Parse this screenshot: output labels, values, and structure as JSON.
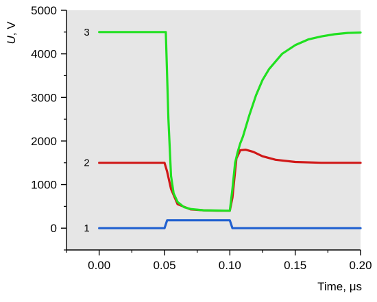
{
  "chart_data": {
    "type": "line",
    "xlabel": "Time, μs",
    "ylabel_italic": "U",
    "ylabel_rest": ", V",
    "xlim": [
      -0.025,
      0.2
    ],
    "ylim": [
      -500,
      5000
    ],
    "x_ticks": [
      0.0,
      0.05,
      0.1,
      0.15,
      0.2
    ],
    "x_tick_labels": [
      "0.00",
      "0.05",
      "0.10",
      "0.15",
      "0.20"
    ],
    "y_ticks": [
      0,
      1000,
      2000,
      3000,
      4000,
      5000
    ],
    "y_tick_labels": [
      "0",
      "1000",
      "2000",
      "3000",
      "4000",
      "5000"
    ],
    "background": "#e6e6e6",
    "series": [
      {
        "label": "1",
        "color": "#2060d0",
        "x": [
          0.0,
          0.05,
          0.052,
          0.1,
          0.102,
          0.2
        ],
        "y": [
          0,
          0,
          180,
          180,
          0,
          0
        ]
      },
      {
        "label": "2",
        "color": "#d01818",
        "x": [
          0.0,
          0.05,
          0.052,
          0.055,
          0.06,
          0.07,
          0.08,
          0.09,
          0.1,
          0.102,
          0.105,
          0.108,
          0.112,
          0.118,
          0.125,
          0.135,
          0.15,
          0.17,
          0.2
        ],
        "y": [
          1500,
          1500,
          1300,
          900,
          550,
          430,
          410,
          400,
          400,
          700,
          1600,
          1790,
          1800,
          1750,
          1650,
          1570,
          1520,
          1500,
          1500
        ]
      },
      {
        "label": "3",
        "color": "#20e020",
        "x": [
          0.0,
          0.051,
          0.053,
          0.055,
          0.057,
          0.06,
          0.065,
          0.07,
          0.08,
          0.09,
          0.1,
          0.102,
          0.104,
          0.106,
          0.108,
          0.11,
          0.115,
          0.12,
          0.125,
          0.13,
          0.14,
          0.15,
          0.16,
          0.17,
          0.18,
          0.19,
          0.2
        ],
        "y": [
          4500,
          4500,
          2500,
          1200,
          800,
          600,
          480,
          440,
          410,
          405,
          400,
          900,
          1500,
          1750,
          1950,
          2100,
          2600,
          3050,
          3400,
          3650,
          4000,
          4200,
          4330,
          4400,
          4450,
          4480,
          4490
        ]
      }
    ]
  }
}
